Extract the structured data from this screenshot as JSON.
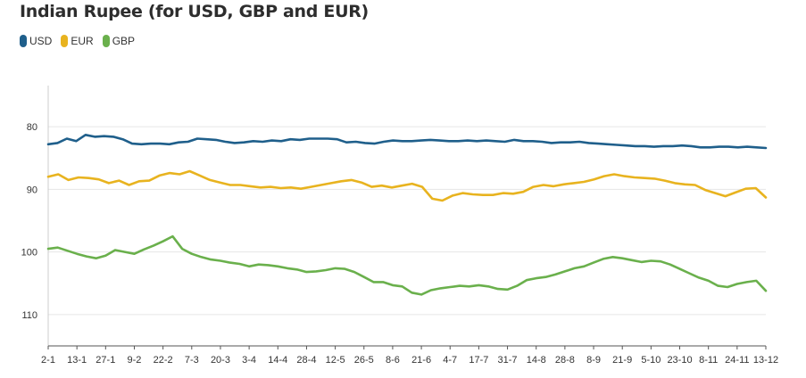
{
  "chart_data": {
    "type": "line",
    "title": "Indian Rupee (for USD, GBP and EUR)",
    "xlabel": "",
    "ylabel": "",
    "y_axis_reversed": true,
    "ylim": [
      74,
      115
    ],
    "yticks": [
      80,
      90,
      100,
      110
    ],
    "x_tick_labels": [
      "2-1",
      "13-1",
      "27-1",
      "9-2",
      "22-2",
      "7-3",
      "20-3",
      "3-4",
      "14-4",
      "28-4",
      "12-5",
      "26-5",
      "8-6",
      "21-6",
      "4-7",
      "17-7",
      "31-7",
      "14-8",
      "28-8",
      "8-9",
      "21-9",
      "5-10",
      "23-10",
      "8-11",
      "24-11",
      "13-12"
    ],
    "grid": "horizontal",
    "legend": "top-left",
    "series": [
      {
        "name": "USD",
        "color": "#1f5f8b",
        "values": [
          82.8,
          82.6,
          81.9,
          82.3,
          81.3,
          81.6,
          81.5,
          81.6,
          82.0,
          82.7,
          82.8,
          82.7,
          82.7,
          82.8,
          82.5,
          82.4,
          81.9,
          82.0,
          82.1,
          82.4,
          82.6,
          82.5,
          82.3,
          82.4,
          82.2,
          82.3,
          82.0,
          82.1,
          81.9,
          81.9,
          81.9,
          82.0,
          82.5,
          82.4,
          82.6,
          82.7,
          82.4,
          82.2,
          82.3,
          82.3,
          82.2,
          82.1,
          82.2,
          82.3,
          82.3,
          82.2,
          82.3,
          82.2,
          82.3,
          82.4,
          82.1,
          82.3,
          82.3,
          82.4,
          82.6,
          82.5,
          82.5,
          82.4,
          82.6,
          82.7,
          82.8,
          82.9,
          83.0,
          83.1,
          83.1,
          83.2,
          83.1,
          83.1,
          83.0,
          83.1,
          83.3,
          83.3,
          83.2,
          83.2,
          83.3,
          83.2,
          83.3,
          83.4
        ]
      },
      {
        "name": "EUR",
        "color": "#e8b31f",
        "values": [
          88.0,
          87.6,
          88.5,
          88.1,
          88.2,
          88.4,
          89.0,
          88.6,
          89.3,
          88.7,
          88.6,
          87.8,
          87.4,
          87.6,
          87.1,
          87.8,
          88.5,
          88.9,
          89.3,
          89.3,
          89.5,
          89.7,
          89.6,
          89.8,
          89.7,
          89.9,
          89.6,
          89.3,
          89.0,
          88.7,
          88.5,
          88.9,
          89.6,
          89.4,
          89.7,
          89.4,
          89.1,
          89.6,
          91.5,
          91.8,
          91.0,
          90.6,
          90.8,
          90.9,
          90.9,
          90.6,
          90.7,
          90.4,
          89.6,
          89.3,
          89.5,
          89.2,
          89.0,
          88.8,
          88.4,
          87.9,
          87.6,
          87.9,
          88.1,
          88.2,
          88.3,
          88.6,
          89.0,
          89.2,
          89.3,
          90.1,
          90.6,
          91.1,
          90.5,
          89.9,
          89.8,
          91.3
        ]
      },
      {
        "name": "GBP",
        "color": "#6ab04c",
        "values": [
          99.5,
          99.3,
          99.8,
          100.3,
          100.7,
          101.0,
          100.6,
          99.7,
          100.0,
          100.3,
          99.6,
          99.0,
          98.3,
          97.5,
          99.5,
          100.3,
          100.8,
          101.2,
          101.4,
          101.7,
          101.9,
          102.3,
          102.0,
          102.1,
          102.3,
          102.6,
          102.8,
          103.2,
          103.1,
          102.9,
          102.6,
          102.7,
          103.2,
          104.0,
          104.8,
          104.8,
          105.3,
          105.5,
          106.5,
          106.8,
          106.1,
          105.8,
          105.6,
          105.4,
          105.5,
          105.3,
          105.5,
          105.9,
          106.0,
          105.4,
          104.5,
          104.2,
          104.0,
          103.6,
          103.1,
          102.6,
          102.3,
          101.7,
          101.1,
          100.8,
          101.0,
          101.3,
          101.6,
          101.4,
          101.5,
          102.0,
          102.7,
          103.4,
          104.1,
          104.6,
          105.4,
          105.6,
          105.1,
          104.8,
          104.6,
          106.2
        ]
      }
    ]
  }
}
